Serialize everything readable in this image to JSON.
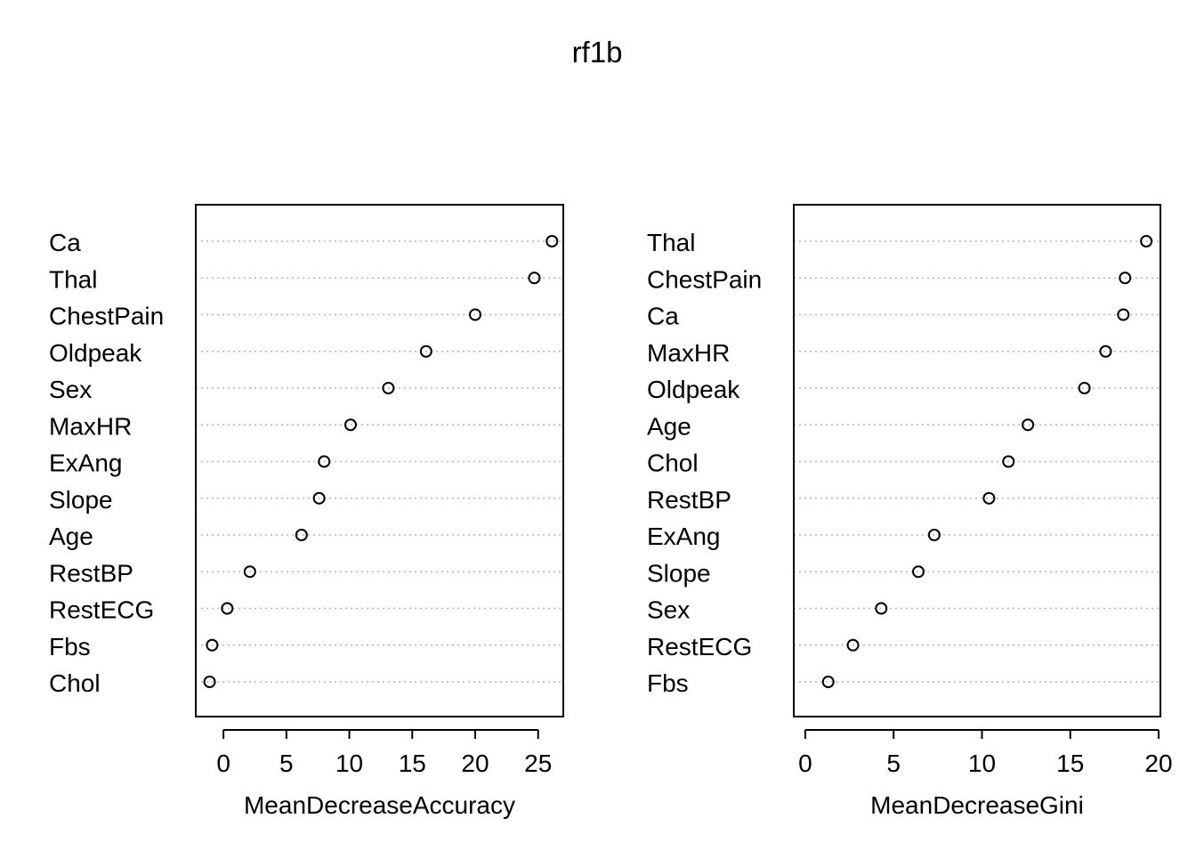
{
  "title": "rf1b",
  "chart_data": [
    {
      "type": "scatter",
      "subtype": "dotchart",
      "xlabel": "MeanDecreaseAccuracy",
      "xlim": [
        -2.2,
        27
      ],
      "xticks": [
        0,
        5,
        10,
        15,
        20,
        25
      ],
      "grid": "dotted horizontal lines per variable",
      "marker": "open circle",
      "labels": [
        "Ca",
        "Thal",
        "ChestPain",
        "Oldpeak",
        "Sex",
        "MaxHR",
        "ExAng",
        "Slope",
        "Age",
        "RestBP",
        "RestECG",
        "Fbs",
        "Chol"
      ],
      "values": [
        26.1,
        24.7,
        20.0,
        16.1,
        13.1,
        10.1,
        8.0,
        7.6,
        6.2,
        2.1,
        0.3,
        -0.9,
        -1.1
      ]
    },
    {
      "type": "scatter",
      "subtype": "dotchart",
      "xlabel": "MeanDecreaseGini",
      "xlim": [
        -0.65,
        20.1
      ],
      "xticks": [
        0,
        5,
        10,
        15,
        20
      ],
      "grid": "dotted horizontal lines per variable",
      "marker": "open circle",
      "labels": [
        "Thal",
        "ChestPain",
        "Ca",
        "MaxHR",
        "Oldpeak",
        "Age",
        "Chol",
        "RestBP",
        "ExAng",
        "Slope",
        "Sex",
        "RestECG",
        "Fbs"
      ],
      "values": [
        19.3,
        18.1,
        18.0,
        17.0,
        15.8,
        12.6,
        11.5,
        10.4,
        7.3,
        6.4,
        4.3,
        2.7,
        1.3
      ]
    }
  ]
}
